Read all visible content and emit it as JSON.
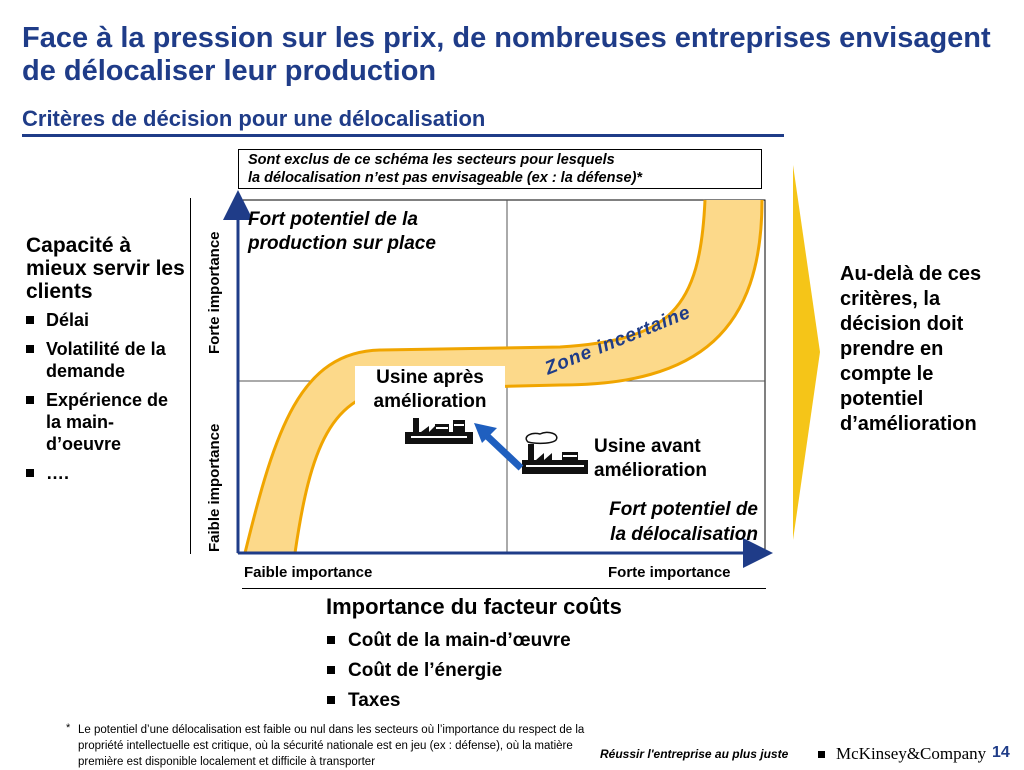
{
  "header": {
    "title": "Face à la pression sur les prix, de nombreuses entreprises envisagent de délocaliser leur production",
    "subtitle": "Critères de décision pour une délocalisation"
  },
  "note_box": {
    "line1": "Sont exclus de ce schéma les secteurs pour lesquels",
    "line2": "la délocalisation n’est pas envisageable (ex : la défense)*"
  },
  "left_panel": {
    "title": "Capacité à mieux servir les clients",
    "items": [
      "Délai",
      "Volatilité de la demande",
      "Expérience de la main-d’oeuvre",
      "…."
    ]
  },
  "diagram": {
    "y_top_label": "Forte importance",
    "y_bottom_label": "Faible importance",
    "x_left_label": "Faible importance",
    "x_right_label": "Forte importance",
    "quadrant_top_left": [
      "Fort potentiel de la",
      "production sur place"
    ],
    "quadrant_bottom_right": [
      "Fort potentiel de",
      "la délocalisation"
    ],
    "band_label": "Zone incertaine",
    "factory_after": [
      "Usine après",
      "amélioration"
    ],
    "factory_before": [
      "Usine avant",
      "amélioration"
    ],
    "band_color": "#fcd98a",
    "band_edge_color": "#f0a500",
    "arrow_color": "#1f5fbf"
  },
  "x_axis": {
    "title": "Importance du facteur coûts",
    "items": [
      "Coût de la main-d’œuvre",
      "Coût de l’énergie",
      "Taxes"
    ]
  },
  "right_panel": {
    "text": "Au-delà de ces critères, la décision doit prendre en compte le potentiel d’amélioration",
    "arrow_color": "#f5c518"
  },
  "footnote": {
    "marker": "*",
    "text": "Le potentiel d’une délocalisation est faible ou nul dans les secteurs où l’importance du respect de la propriété intellectuelle est critique, où la sécurité nationale est en jeu (ex : défense), où la matière première est disponible localement et difficile à transporter"
  },
  "footer": {
    "tagline": "Réussir l'entreprise au plus juste",
    "brand": "McKinsey&Company",
    "page": "14"
  }
}
